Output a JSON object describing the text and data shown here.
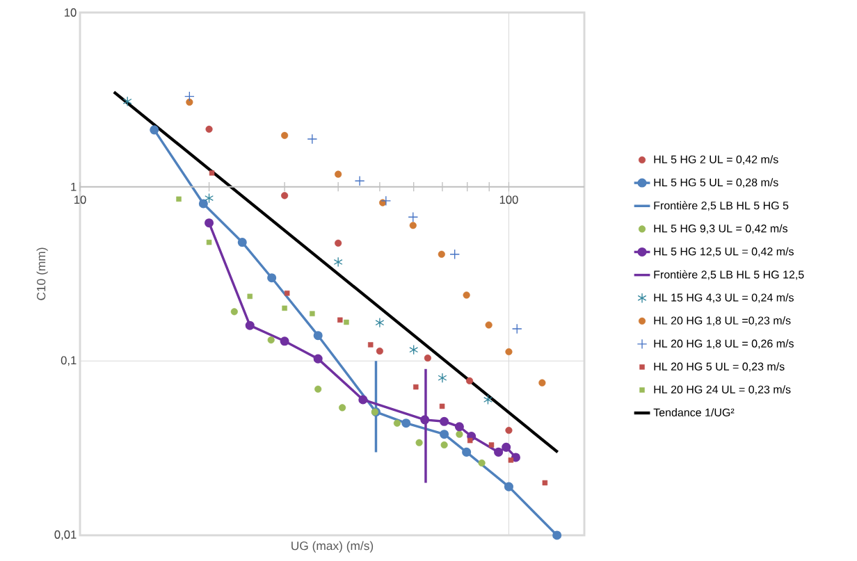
{
  "chart_data": {
    "type": "scatter",
    "xlabel": "UG (max) (m/s)",
    "ylabel": "C10 (mm)",
    "log": "xy",
    "xlim": [
      10,
      150
    ],
    "ylim": [
      0.01,
      10
    ],
    "xticks": [
      10,
      100
    ],
    "yticks": [
      {
        "value": 0.01,
        "label": "0,01"
      },
      {
        "value": 0.1,
        "label": "0,1"
      },
      1,
      10
    ],
    "grid": true,
    "legend": "right",
    "series": [
      {
        "name": "HL 5 HG 2 UL = 0,42 m/s",
        "marker": "circle",
        "color": "#c0504d",
        "x": [
          20,
          30,
          40,
          50,
          64.7,
          81,
          100
        ],
        "values": [
          2.14,
          0.89,
          0.475,
          0.114,
          0.104,
          0.077,
          0.04
        ]
      },
      {
        "name": "HL 5 HG 5 UL = 0,28 m/s",
        "type": "line",
        "marker": "circle",
        "color": "#4f81bd",
        "x": [
          14.9,
          19.4,
          23.9,
          28,
          35.9,
          49,
          57.6,
          70.7,
          79.7,
          100,
          129.5
        ],
        "values": [
          2.12,
          0.8,
          0.48,
          0.3,
          0.14,
          0.051,
          0.044,
          0.038,
          0.03,
          0.019,
          0.01
        ]
      },
      {
        "name": "Frontière 2,5 LB HL 5 HG 5",
        "type": "line",
        "marker": "none",
        "color": "#4f81bd",
        "x": [
          49,
          49
        ],
        "values": [
          0.1,
          0.03
        ]
      },
      {
        "name": "HL 5 HG 9,3 UL = 0,42 m/s",
        "marker": "circle",
        "color": "#9bbb59",
        "x": [
          22.9,
          27.9,
          35.9,
          40.9,
          48.7,
          54.9,
          61.8,
          70.7,
          76.7,
          86.5
        ],
        "values": [
          0.192,
          0.132,
          0.069,
          0.054,
          0.051,
          0.044,
          0.034,
          0.033,
          0.038,
          0.026
        ]
      },
      {
        "name": "HL 5 HG 12,5 UL = 0,42 m/s",
        "type": "line",
        "marker": "circle",
        "color": "#7030a0",
        "x": [
          20,
          24.9,
          30,
          35.9,
          45.7,
          63.7,
          70.7,
          76.7,
          81.8,
          94.6,
          98.6,
          103.8
        ],
        "values": [
          0.62,
          0.16,
          0.13,
          0.103,
          0.06,
          0.046,
          0.045,
          0.042,
          0.037,
          0.03,
          0.032,
          0.028
        ]
      },
      {
        "name": "Frontière 2,5 LB HL 5 HG 12,5",
        "type": "line",
        "marker": "none",
        "color": "#7030a0",
        "x": [
          64,
          64
        ],
        "values": [
          0.09,
          0.02
        ]
      },
      {
        "name": "HL 15 HG 4,3 UL = 0,24 m/s",
        "color": "#31859c",
        "x": [
          12.9,
          20,
          40,
          50,
          60,
          70,
          89.4
        ],
        "values": [
          3.09,
          0.86,
          0.37,
          0.166,
          0.116,
          0.08,
          0.06
        ]
      },
      {
        "name": "HL 20 HG 1,8 UL =0,23 m/s",
        "marker": "circle",
        "color": "#d07a35",
        "x": [
          18,
          30,
          40,
          50.8,
          59.8,
          69.7,
          79.7,
          89.8,
          100,
          119.6
        ],
        "values": [
          3.06,
          1.97,
          1.18,
          0.81,
          0.6,
          0.41,
          0.239,
          0.161,
          0.113,
          0.075
        ]
      },
      {
        "name": "HL 20 HG 1,8 UL = 0,26 m/s",
        "marker": "cross",
        "color": "#4472c4",
        "x": [
          18,
          34.8,
          44.9,
          51.7,
          59.8,
          74.8,
          104.5
        ],
        "values": [
          3.3,
          1.88,
          1.08,
          0.83,
          0.67,
          0.41,
          0.153
        ]
      },
      {
        "name": "HL 20 HG 5 UL = 0,23 m/s",
        "marker": "square",
        "color": "#c0504d",
        "x": [
          20.3,
          30.4,
          40.4,
          47.6,
          60.7,
          69.9,
          81.2,
          91.1,
          101.1,
          121.4
        ],
        "values": [
          1.2,
          0.245,
          0.172,
          0.124,
          0.071,
          0.055,
          0.035,
          0.033,
          0.027,
          0.02
        ]
      },
      {
        "name": "HL 20 HG 24 UL = 0,23 m/s",
        "marker": "square",
        "color": "#9bbb59",
        "x": [
          17,
          20,
          24.9,
          30,
          34.8,
          41.8
        ],
        "values": [
          0.85,
          0.48,
          0.235,
          0.201,
          0.187,
          0.167
        ]
      },
      {
        "name": "Tendance 1/UG²",
        "type": "line",
        "marker": "none",
        "color": "#000000",
        "x": [
          12,
          130
        ],
        "values": [
          3.5,
          0.03
        ]
      }
    ]
  }
}
